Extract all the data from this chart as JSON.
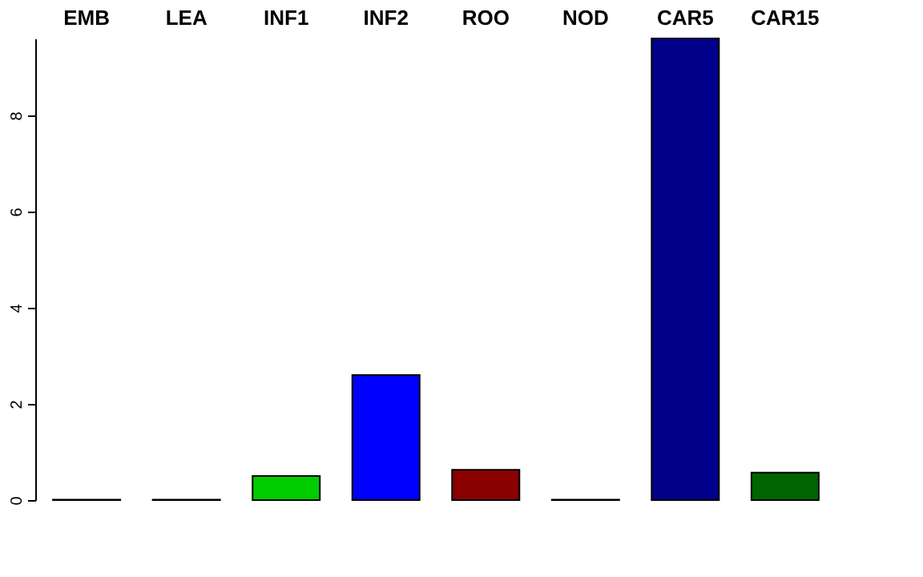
{
  "chart_data": {
    "type": "bar",
    "categories": [
      "EMB",
      "LEA",
      "INF1",
      "INF2",
      "ROO",
      "NOD",
      "CAR5",
      "CAR15"
    ],
    "values": [
      0.01,
      0.01,
      0.5,
      2.6,
      0.63,
      0.01,
      9.6,
      0.57
    ],
    "colors": [
      "#000000",
      "#000000",
      "#00cc00",
      "#0000ff",
      "#8b0000",
      "#000000",
      "#00008b",
      "#006400"
    ],
    "ylim": [
      0,
      9.6
    ],
    "yticks": [
      0,
      2,
      4,
      6,
      8
    ],
    "grid": false
  }
}
